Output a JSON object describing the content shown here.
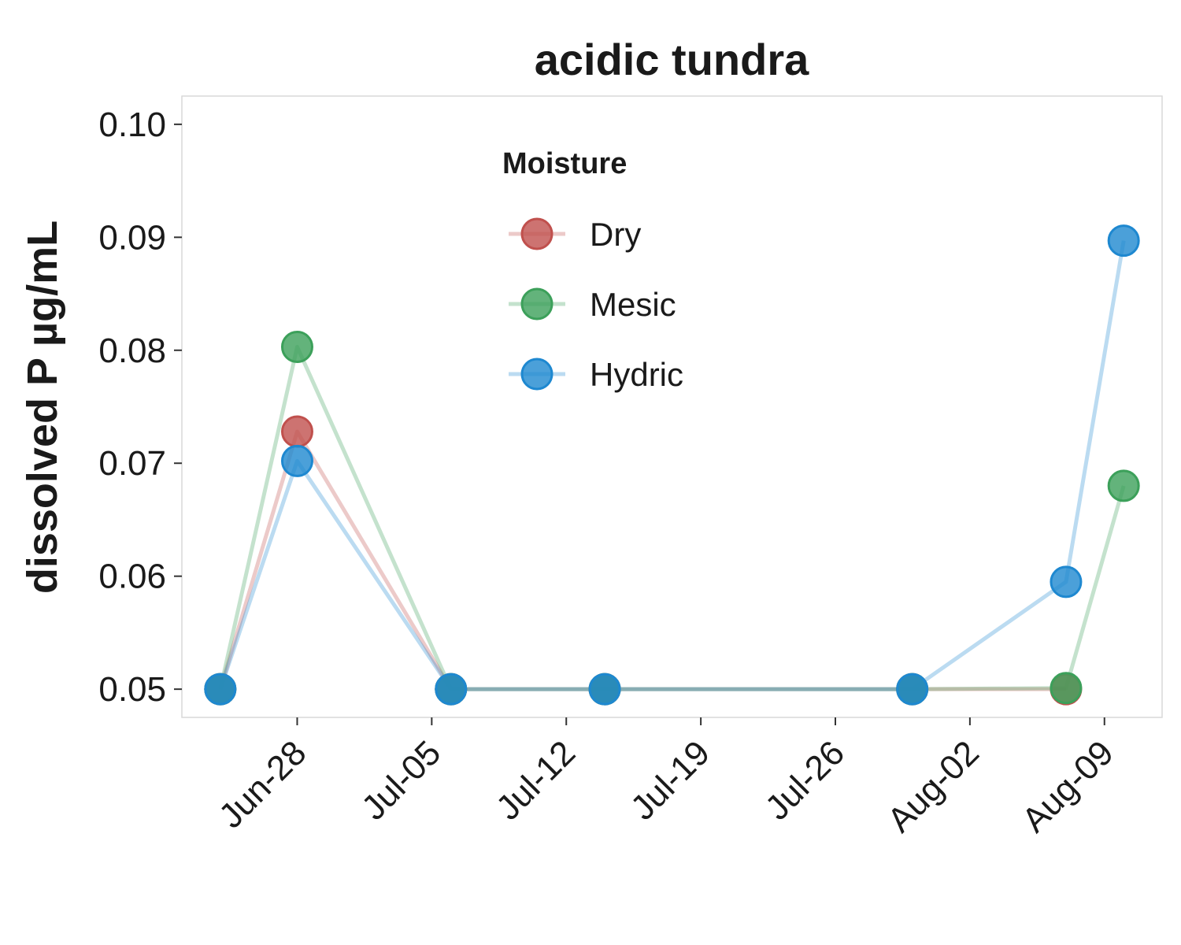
{
  "chart_data": {
    "type": "line",
    "title": "acidic tundra",
    "ylabel": "dissolved P µg/mL",
    "xlabel": "",
    "x_ticks": [
      "Jun-28",
      "Jul-05",
      "Jul-12",
      "Jul-19",
      "Jul-26",
      "Aug-02",
      "Aug-09"
    ],
    "x_range": [
      "Jun-22",
      "Aug-12"
    ],
    "ylim": [
      0.0475,
      0.1025
    ],
    "y_ticks": [
      "0.05",
      "0.06",
      "0.07",
      "0.08",
      "0.09",
      "0.10"
    ],
    "grid": false,
    "legend": {
      "title": "Moisture",
      "placement": "top-center inside plot"
    },
    "series": [
      {
        "name": "Dry",
        "color": "#C0504D",
        "x": [
          "Jun-24",
          "Jun-28",
          "Jul-06",
          "Jul-14",
          "Jul-30",
          "Aug-07",
          "Aug-10"
        ],
        "y": [
          0.05,
          0.0728,
          0.05,
          0.05,
          0.05,
          0.05,
          null
        ]
      },
      {
        "name": "Mesic",
        "color": "#3CA05A",
        "x": [
          "Jun-24",
          "Jun-28",
          "Jul-06",
          "Jul-14",
          "Jul-30",
          "Aug-07",
          "Aug-10"
        ],
        "y": [
          0.05,
          0.0803,
          0.05,
          0.05,
          0.05,
          0.0501,
          0.068
        ]
      },
      {
        "name": "Hydric",
        "color": "#1E88D0",
        "x": [
          "Jun-24",
          "Jun-28",
          "Jul-06",
          "Jul-14",
          "Jul-30",
          "Aug-07",
          "Aug-10"
        ],
        "y": [
          0.05,
          0.0702,
          0.05,
          0.05,
          0.05,
          0.0595,
          0.0897
        ]
      }
    ]
  }
}
